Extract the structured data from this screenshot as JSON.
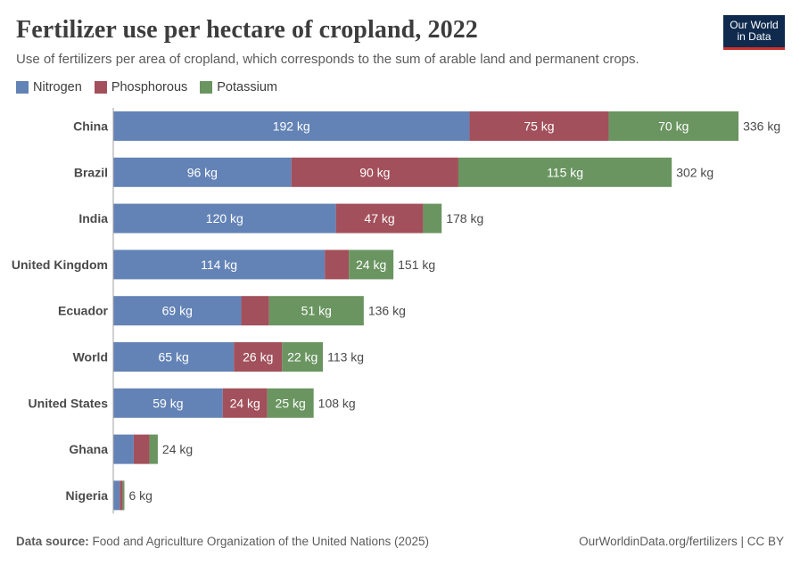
{
  "header": {
    "title": "Fertilizer use per hectare of cropland, 2022",
    "subtitle": "Use of fertilizers per area of cropland, which corresponds to the sum of arable land and permanent crops.",
    "logo_line1": "Our World",
    "logo_line2": "in Data"
  },
  "legend": [
    {
      "name": "Nitrogen",
      "color": "#6383b6"
    },
    {
      "name": "Phosphorous",
      "color": "#a2505b"
    },
    {
      "name": "Potassium",
      "color": "#6a9561"
    }
  ],
  "chart_data": {
    "type": "bar",
    "orientation": "horizontal",
    "stacked": true,
    "title": "Fertilizer use per hectare of cropland, 2022",
    "unit": "kg",
    "categories": [
      "China",
      "Brazil",
      "India",
      "United Kingdom",
      "Ecuador",
      "World",
      "United States",
      "Ghana",
      "Nigeria"
    ],
    "series": [
      {
        "name": "Nitrogen",
        "color": "#6383b6",
        "values": [
          192,
          96,
          120,
          114,
          69,
          65,
          59,
          11,
          3.5
        ],
        "labels": [
          "192 kg",
          "96 kg",
          "120 kg",
          "114 kg",
          "69 kg",
          "65 kg",
          "59 kg",
          "",
          ""
        ]
      },
      {
        "name": "Phosphorous",
        "color": "#a2505b",
        "values": [
          75,
          90,
          47,
          13,
          15,
          26,
          24,
          8.5,
          1.5
        ],
        "labels": [
          "75 kg",
          "90 kg",
          "47 kg",
          "",
          "",
          "26 kg",
          "24 kg",
          "",
          ""
        ]
      },
      {
        "name": "Potassium",
        "color": "#6a9561",
        "values": [
          70,
          115,
          10,
          24,
          51,
          22,
          25,
          4.5,
          1.0
        ],
        "labels": [
          "70 kg",
          "115 kg",
          "",
          "24 kg",
          "51 kg",
          "22 kg",
          "25 kg",
          "",
          ""
        ]
      }
    ],
    "totals": [
      "336 kg",
      "302 kg",
      "178 kg",
      "151 kg",
      "136 kg",
      "113 kg",
      "108 kg",
      "24 kg",
      "6 kg"
    ],
    "xlim": [
      0,
      336
    ],
    "legend_position": "top-left"
  },
  "footer": {
    "source_label": "Data source:",
    "source_text": "Food and Agriculture Organization of the United Nations (2025)",
    "url_license": "OurWorldinData.org/fertilizers | CC BY"
  }
}
